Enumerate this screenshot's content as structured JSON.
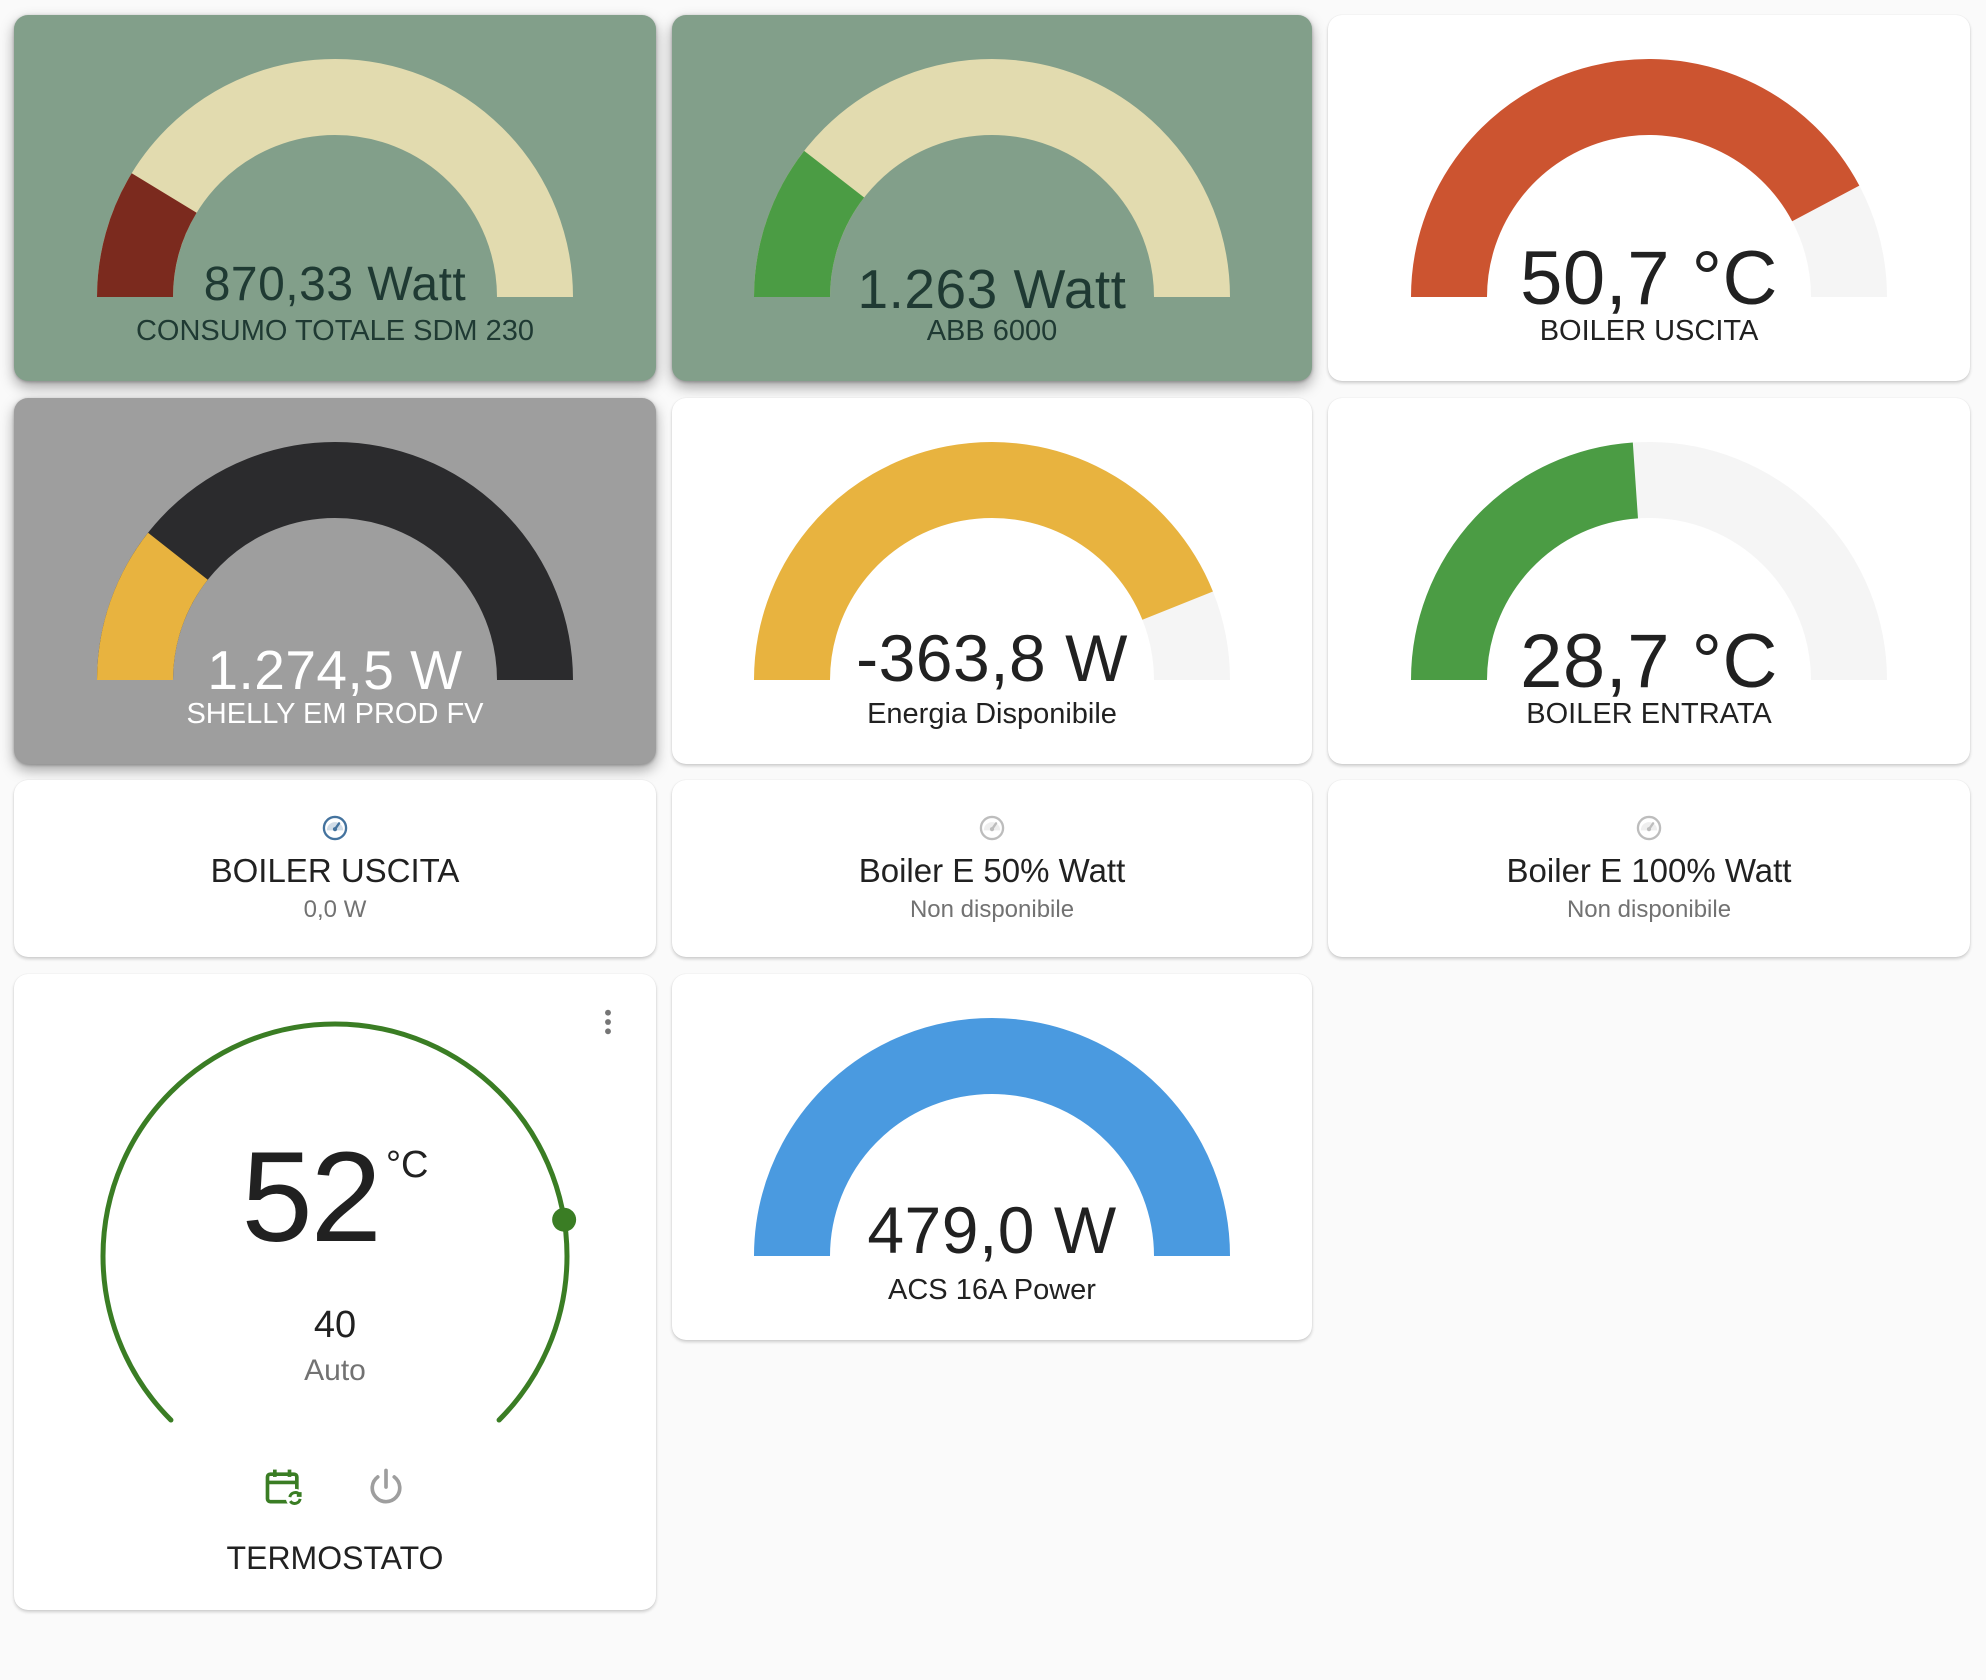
{
  "gauges": [
    {
      "id": "consumo",
      "value": 870.33,
      "min": 0,
      "max": 5000,
      "value_text": "870,33 Watt",
      "name": "CONSUMO TOTALE SDM 230",
      "background": "#829f8a",
      "fill_color": "#7b2a1e",
      "rest_color": "#e2dbaf",
      "text_color": "#1f3a33"
    },
    {
      "id": "abb",
      "value": 1263,
      "min": 0,
      "max": 6000,
      "value_text": "1.263 Watt",
      "name": "ABB 6000",
      "background": "#829f8a",
      "fill_color": "#4b9c44",
      "rest_color": "#e2dbaf",
      "text_color": "#1f3a33"
    },
    {
      "id": "boiler_uscita_gauge",
      "value": 50.7,
      "min": 0,
      "max": 60,
      "value_text": "50,7 °C",
      "name": "BOILER USCITA",
      "background": "#ffffff",
      "fill_color": "#cc5430",
      "rest_color": "#f5f5f5",
      "text_color": "#212121"
    },
    {
      "id": "shelly",
      "value": 1274.5,
      "min": 0,
      "max": 6000,
      "value_text": "1.274,5 W",
      "name": "SHELLY EM PROD FV",
      "background": "#9e9e9e",
      "fill_color": "#e8b33f",
      "rest_color": "#2b2b2d",
      "text_color": "#ffffff"
    },
    {
      "id": "energia",
      "value": -363.8,
      "min": -3000,
      "max": 0,
      "value_text": "-363,8 W",
      "name": "Energia Disponibile",
      "background": "#ffffff",
      "fill_color": "#e8b33f",
      "rest_color": "#f5f5f5",
      "text_color": "#212121"
    },
    {
      "id": "boiler_entrata_gauge",
      "value": 28.7,
      "min": 0,
      "max": 60,
      "value_text": "28,7 °C",
      "name": "BOILER ENTRATA",
      "background": "#ffffff",
      "fill_color": "#4b9c44",
      "rest_color": "#f5f5f5",
      "text_color": "#212121"
    },
    {
      "id": "acs",
      "value": 479,
      "min": 0,
      "max": 479,
      "value_text": "479,0 W",
      "name": "ACS 16A Power",
      "background": "#ffffff",
      "fill_color": "#4a9ae0",
      "rest_color": "#f5f5f5",
      "text_color": "#212121"
    }
  ],
  "entities": [
    {
      "name": "BOILER USCITA",
      "state": "0,0 W",
      "icon": "gauge-icon",
      "icon_color": "#44739e"
    },
    {
      "name": "Boiler E 50% Watt",
      "state": "Non disponibile",
      "icon": "gauge-icon",
      "icon_color": "#bdbdbd"
    },
    {
      "name": "Boiler E 100% Watt",
      "state": "Non disponibile",
      "icon": "gauge-icon",
      "icon_color": "#bdbdbd"
    }
  ],
  "thermostat": {
    "temperature": "52",
    "unit": "°C",
    "target": "40",
    "mode": "Auto",
    "name": "TERMOSTATO",
    "arc_color": "#3a7d24",
    "target_fraction": 0.2,
    "icons": [
      "calendar-sync-icon",
      "power-icon",
      "more-options-icon"
    ]
  }
}
